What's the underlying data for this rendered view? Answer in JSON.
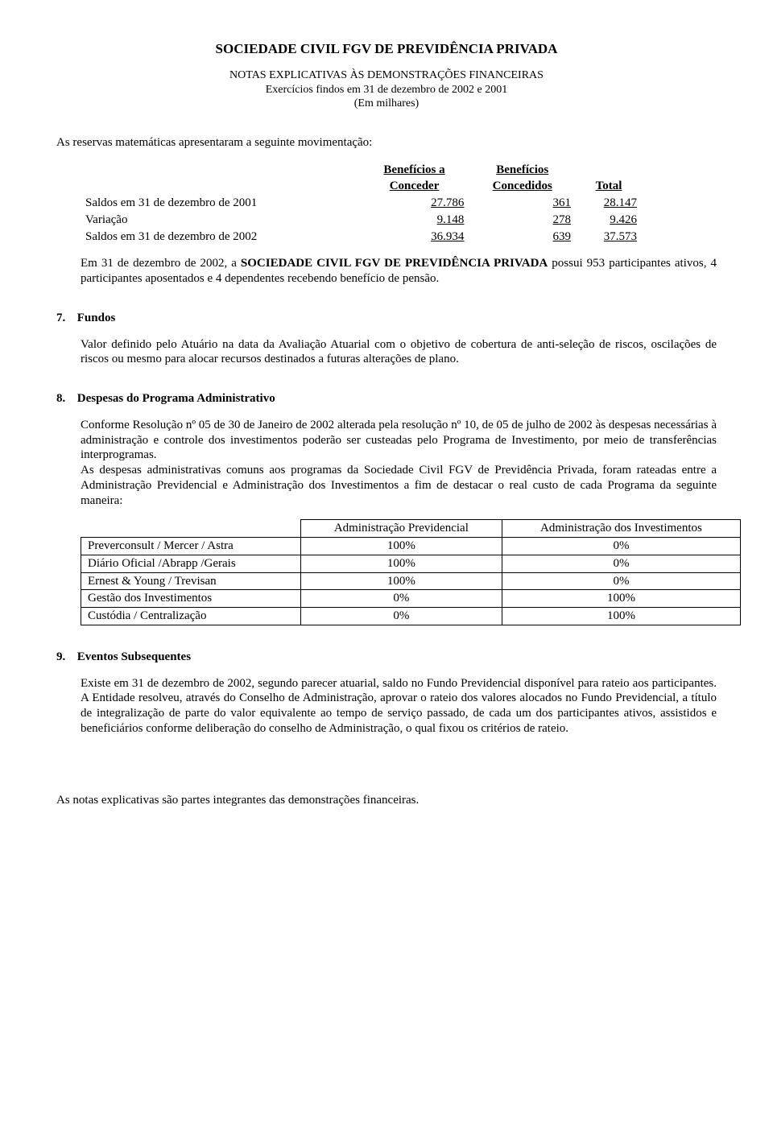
{
  "header": {
    "title": "SOCIEDADE CIVIL FGV DE PREVIDÊNCIA PRIVADA",
    "subtitle_line1": "NOTAS EXPLICATIVAS ÀS DEMONSTRAÇÕES FINANCEIRAS",
    "subtitle_line2": "Exercícios findos em 31 de dezembro de 2002 e 2001",
    "subtitle_line3": "(Em milhares)"
  },
  "intro_para": "As reservas matemáticas apresentaram a seguinte movimentação:",
  "mov_table": {
    "col_headers": {
      "c1a": "Benefícios a",
      "c1b": "Conceder",
      "c2a": "Benefícios",
      "c2b": "Concedidos",
      "c3": "Total"
    },
    "rows": [
      {
        "label": "Saldos em 31 de dezembro de 2001",
        "c1": "27.786",
        "c2": "361",
        "c3": "28.147"
      },
      {
        "label": "Variação",
        "c1": "9.148",
        "c2": "278",
        "c3": "9.426"
      },
      {
        "label": "Saldos em 31 de dezembro de 2002",
        "c1": "36.934",
        "c2": "639",
        "c3": "37.573"
      }
    ]
  },
  "body_para_1a": "Em 31 de dezembro de 2002, a ",
  "body_para_1b": "SOCIEDADE CIVIL FGV DE PREVIDÊNCIA PRIVADA",
  "body_para_1c": " possui 953 participantes ativos, 4 participantes aposentados e 4 dependentes recebendo benefício de pensão.",
  "sec7": {
    "num": "7.",
    "title": "Fundos",
    "para": "Valor definido pelo Atuário na data da Avaliação Atuarial com o objetivo de cobertura de anti-seleção de riscos, oscilações de riscos ou mesmo para alocar recursos destinados a futuras alterações de plano."
  },
  "sec8": {
    "num": "8.",
    "title": "Despesas do Programa Administrativo",
    "para1": "Conforme Resolução nº 05 de 30 de Janeiro de 2002 alterada pela resolução nº 10, de 05 de julho de 2002 às despesas necessárias à administração e controle dos investimentos poderão ser custeadas pelo Programa de Investimento, por meio de transferências interprogramas.",
    "para2": "As despesas administrativas comuns aos programas da Sociedade Civil FGV de Previdência Privada, foram rateadas entre a Administração Previdencial e Administração dos Investimentos a fim de destacar o real custo de cada Programa da seguinte maneira:"
  },
  "admin_table": {
    "headers": {
      "c1": "Administração Previdencial",
      "c2": "Administração dos Investimentos"
    },
    "rows": [
      {
        "label": "Preverconsult / Mercer / Astra",
        "c1": "100%",
        "c2": "0%"
      },
      {
        "label": "Diário Oficial /Abrapp /Gerais",
        "c1": "100%",
        "c2": "0%"
      },
      {
        "label": "Ernest & Young / Trevisan",
        "c1": "100%",
        "c2": "0%"
      },
      {
        "label": "Gestão dos Investimentos",
        "c1": "0%",
        "c2": "100%"
      },
      {
        "label": "Custódia / Centralização",
        "c1": "0%",
        "c2": "100%"
      }
    ]
  },
  "sec9": {
    "num": "9.",
    "title": "Eventos Subsequentes",
    "para": "Existe em 31 de dezembro de 2002, segundo parecer atuarial, saldo no Fundo Previdencial disponível para rateio aos participantes. A Entidade resolveu, através do Conselho de Administração, aprovar o rateio dos valores alocados no Fundo Previdencial, a título de integralização de parte do valor equivalente ao tempo de serviço passado, de cada um dos participantes ativos, assistidos e beneficiários conforme deliberação do conselho de Administração, o qual fixou os critérios de rateio."
  },
  "footer": "As notas explicativas são partes integrantes das demonstrações financeiras."
}
